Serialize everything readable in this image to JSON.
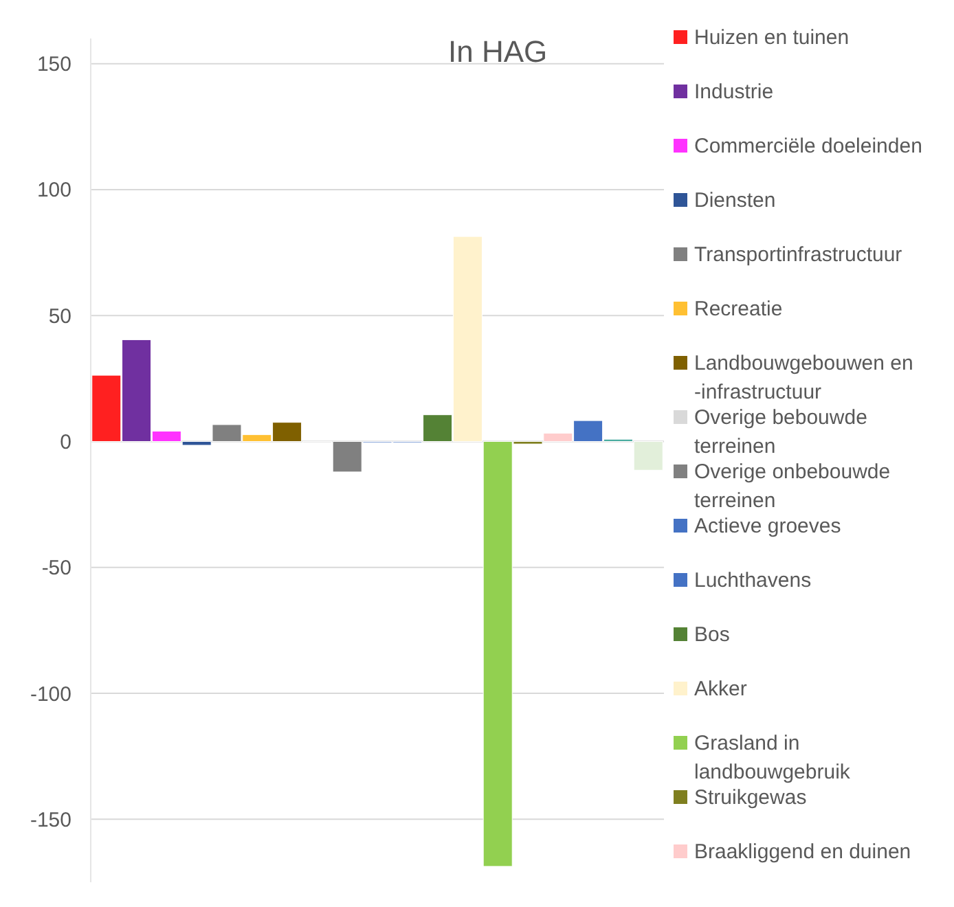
{
  "chart_data": {
    "type": "bar",
    "title": "In HAG",
    "categories": [
      null
    ],
    "ylim": [
      -175,
      160
    ],
    "yticks": [
      -150,
      -100,
      -50,
      0,
      50,
      100,
      150
    ],
    "grid": "y",
    "legend": "right",
    "series": [
      {
        "name": "Huizen en tuinen",
        "color": "#ff2020",
        "values": [
          26.3
        ]
      },
      {
        "name": "Industrie",
        "color": "#7030a0",
        "values": [
          40.4
        ]
      },
      {
        "name": "Commerciële doeleinden",
        "color": "#ff33ff",
        "values": [
          4.1
        ]
      },
      {
        "name": "Diensten",
        "color": "#2f5597",
        "values": [
          -1.5
        ]
      },
      {
        "name": "Transportinfrastructuur",
        "color": "#808080",
        "values": [
          6.7
        ]
      },
      {
        "name": "Recreatie",
        "color": "#ffc032",
        "values": [
          2.7
        ]
      },
      {
        "name": "Landbouwgebouwen en -infrastructuur",
        "color": "#7f6000",
        "values": [
          7.6
        ]
      },
      {
        "name": "Overige bebouwde terreinen",
        "color": "#d9d9d9",
        "values": [
          0
        ]
      },
      {
        "name": "Overige onbebouwde terreinen",
        "color": "#808080",
        "values": [
          -12.1
        ]
      },
      {
        "name": "Actieve groeves",
        "color": "#4472c4",
        "values": [
          0
        ]
      },
      {
        "name": "Luchthavens",
        "color": "#4472c4",
        "values": [
          0
        ]
      },
      {
        "name": "Bos",
        "color": "#548235",
        "values": [
          10.6
        ]
      },
      {
        "name": "Akker",
        "color": "#fff2cc",
        "values": [
          81.4
        ]
      },
      {
        "name": "Grasland in landbouwgebruik",
        "color": "#92d050",
        "values": [
          -168.7
        ]
      },
      {
        "name": "Struikgewas",
        "color": "#7f7f1f",
        "values": [
          -1
        ]
      },
      {
        "name": "Braakliggend en duinen",
        "color": "#ffcccc",
        "values": [
          3.3
        ]
      },
      {
        "color": "#4472c4",
        "values": [
          8.3
        ]
      },
      {
        "color": "#4aaca0",
        "values": [
          0.9
        ]
      },
      {
        "color": "#e2efda",
        "values": [
          -11.4
        ]
      }
    ]
  }
}
